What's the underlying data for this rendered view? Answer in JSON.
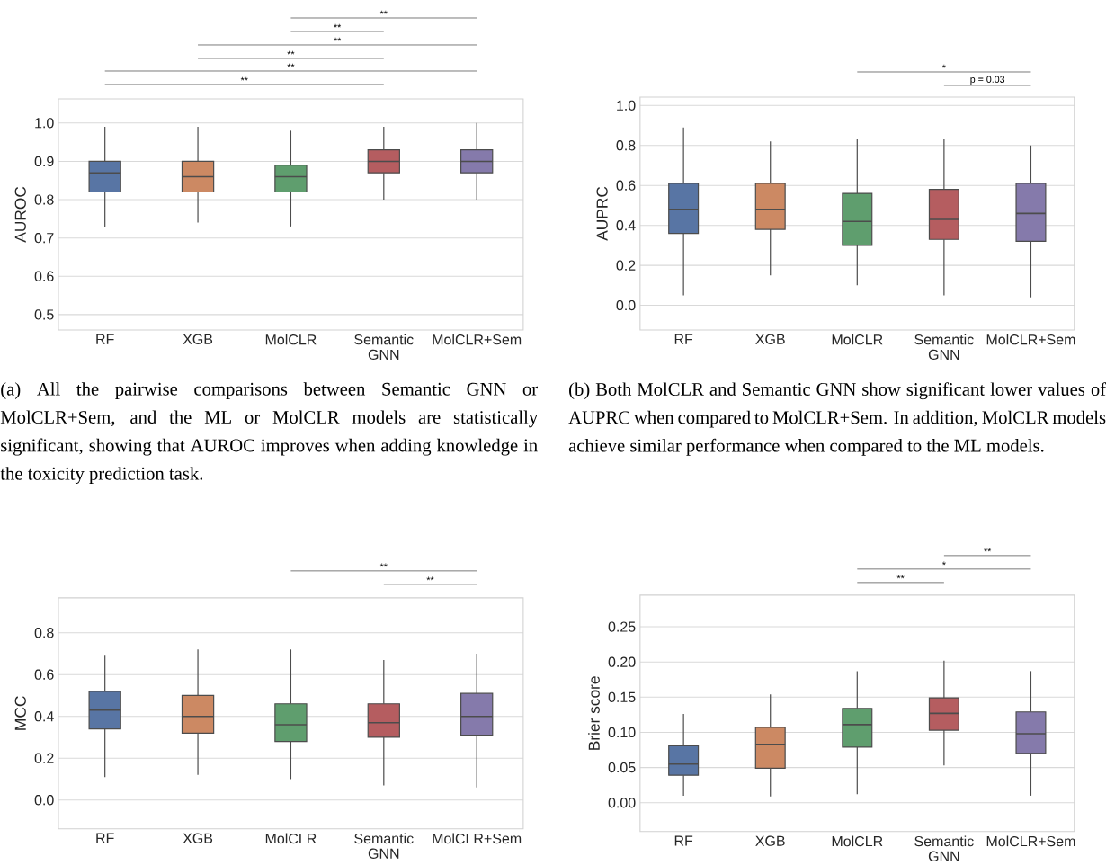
{
  "chart_data": [
    {
      "type": "box",
      "ylabel": "AUROC",
      "categories": [
        "RF",
        "XGB",
        "MolCLR",
        "Semantic GNN",
        "MolCLR+Sem"
      ],
      "colors": [
        "#5875a4",
        "#cc8963",
        "#5f9e6e",
        "#b55d60",
        "#857aab"
      ],
      "boxes": [
        {
          "low": 0.73,
          "q1": 0.82,
          "median": 0.87,
          "q3": 0.9,
          "high": 0.99
        },
        {
          "low": 0.74,
          "q1": 0.82,
          "median": 0.86,
          "q3": 0.9,
          "high": 0.99
        },
        {
          "low": 0.73,
          "q1": 0.82,
          "median": 0.86,
          "q3": 0.89,
          "high": 0.98
        },
        {
          "low": 0.8,
          "q1": 0.87,
          "median": 0.9,
          "q3": 0.93,
          "high": 0.99
        },
        {
          "low": 0.8,
          "q1": 0.87,
          "median": 0.9,
          "q3": 0.93,
          "high": 1.0
        }
      ],
      "ylim": [
        0.46,
        1.063
      ],
      "yticks": [
        {
          "value": 0.5,
          "label": "0.5"
        },
        {
          "value": 0.6,
          "label": "0.6"
        },
        {
          "value": 0.7,
          "label": "0.7"
        },
        {
          "value": 0.8,
          "label": "0.8"
        },
        {
          "value": 0.9,
          "label": "0.9"
        },
        {
          "value": 1.0,
          "label": "1.0"
        }
      ],
      "grid": "y",
      "annotations": [
        "**",
        "**",
        "**",
        "**",
        "**",
        "**",
        "(a) All the pairwise comparisons between Semantic GNN or MolCLR+Sem, and the ML or MolCLR models are statistically significant, showing that AUROC improves when adding knowledge in the toxicity prediction task."
      ]
    },
    {
      "type": "box",
      "ylabel": "AUPRC",
      "categories": [
        "RF",
        "XGB",
        "MolCLR",
        "Semantic GNN",
        "MolCLR+Sem"
      ],
      "colors": [
        "#5875a4",
        "#cc8963",
        "#5f9e6e",
        "#b55d60",
        "#857aab"
      ],
      "boxes": [
        {
          "low": 0.05,
          "q1": 0.36,
          "median": 0.48,
          "q3": 0.61,
          "high": 0.89
        },
        {
          "low": 0.15,
          "q1": 0.38,
          "median": 0.48,
          "q3": 0.61,
          "high": 0.82
        },
        {
          "low": 0.1,
          "q1": 0.3,
          "median": 0.42,
          "q3": 0.56,
          "high": 0.83
        },
        {
          "low": 0.05,
          "q1": 0.33,
          "median": 0.43,
          "q3": 0.58,
          "high": 0.83
        },
        {
          "low": 0.04,
          "q1": 0.32,
          "median": 0.46,
          "q3": 0.61,
          "high": 0.8
        }
      ],
      "ylim": [
        -0.123,
        1.042
      ],
      "yticks": [
        {
          "value": 0,
          "label": "0.0"
        },
        {
          "value": 0.2,
          "label": "0.2"
        },
        {
          "value": 0.4,
          "label": "0.4"
        },
        {
          "value": 0.6,
          "label": "0.6"
        },
        {
          "value": 0.8,
          "label": "0.8"
        },
        {
          "value": 1.0,
          "label": "1.0"
        }
      ],
      "grid": "y",
      "annotations": [
        "*",
        "p = 0.03",
        "(b) Both MolCLR and Semantic GNN show significant lower values of AUPRC when compared to MolCLR+Sem. In addition, MolCLR models achieve similar performance when compared to the ML models."
      ]
    },
    {
      "type": "box",
      "ylabel": "MCC",
      "categories": [
        "RF",
        "XGB",
        "MolCLR",
        "Semantic GNN",
        "MolCLR+Sem"
      ],
      "colors": [
        "#5875a4",
        "#cc8963",
        "#5f9e6e",
        "#b55d60",
        "#857aab"
      ],
      "boxes": [
        {
          "low": 0.11,
          "q1": 0.34,
          "median": 0.43,
          "q3": 0.52,
          "high": 0.69
        },
        {
          "low": 0.12,
          "q1": 0.32,
          "median": 0.4,
          "q3": 0.5,
          "high": 0.72
        },
        {
          "low": 0.1,
          "q1": 0.28,
          "median": 0.36,
          "q3": 0.46,
          "high": 0.72
        },
        {
          "low": 0.07,
          "q1": 0.3,
          "median": 0.37,
          "q3": 0.46,
          "high": 0.67
        },
        {
          "low": 0.06,
          "q1": 0.31,
          "median": 0.4,
          "q3": 0.51,
          "high": 0.7
        }
      ],
      "ylim": [
        -0.138,
        0.967
      ],
      "yticks": [
        {
          "value": 0,
          "label": "0.0"
        },
        {
          "value": 0.2,
          "label": "0.2"
        },
        {
          "value": 0.4,
          "label": "0.4"
        },
        {
          "value": 0.6,
          "label": "0.6"
        },
        {
          "value": 0.8,
          "label": "0.8"
        }
      ],
      "grid": "y",
      "annotations": [
        "**",
        "**"
      ]
    },
    {
      "type": "box",
      "ylabel": "Brier score",
      "categories": [
        "RF",
        "XGB",
        "MolCLR",
        "Semantic GNN",
        "MolCLR+Sem"
      ],
      "colors": [
        "#5875a4",
        "#cc8963",
        "#5f9e6e",
        "#b55d60",
        "#857aab"
      ],
      "boxes": [
        {
          "low": 0.01,
          "q1": 0.039,
          "median": 0.055,
          "q3": 0.081,
          "high": 0.126
        },
        {
          "low": 0.009,
          "q1": 0.049,
          "median": 0.083,
          "q3": 0.107,
          "high": 0.154
        },
        {
          "low": 0.012,
          "q1": 0.079,
          "median": 0.111,
          "q3": 0.134,
          "high": 0.187
        },
        {
          "low": 0.053,
          "q1": 0.103,
          "median": 0.127,
          "q3": 0.149,
          "high": 0.202
        },
        {
          "low": 0.01,
          "q1": 0.07,
          "median": 0.098,
          "q3": 0.129,
          "high": 0.187
        }
      ],
      "ylim": [
        -0.041,
        0.295
      ],
      "yticks": [
        {
          "value": 0,
          "label": "0.00"
        },
        {
          "value": 0.05,
          "label": "0.05"
        },
        {
          "value": 0.1,
          "label": "0.10"
        },
        {
          "value": 0.15,
          "label": "0.15"
        },
        {
          "value": 0.2,
          "label": "0.20"
        },
        {
          "value": 0.25,
          "label": "0.25"
        }
      ],
      "grid": "y",
      "annotations": [
        "**",
        "*",
        "**"
      ]
    }
  ]
}
